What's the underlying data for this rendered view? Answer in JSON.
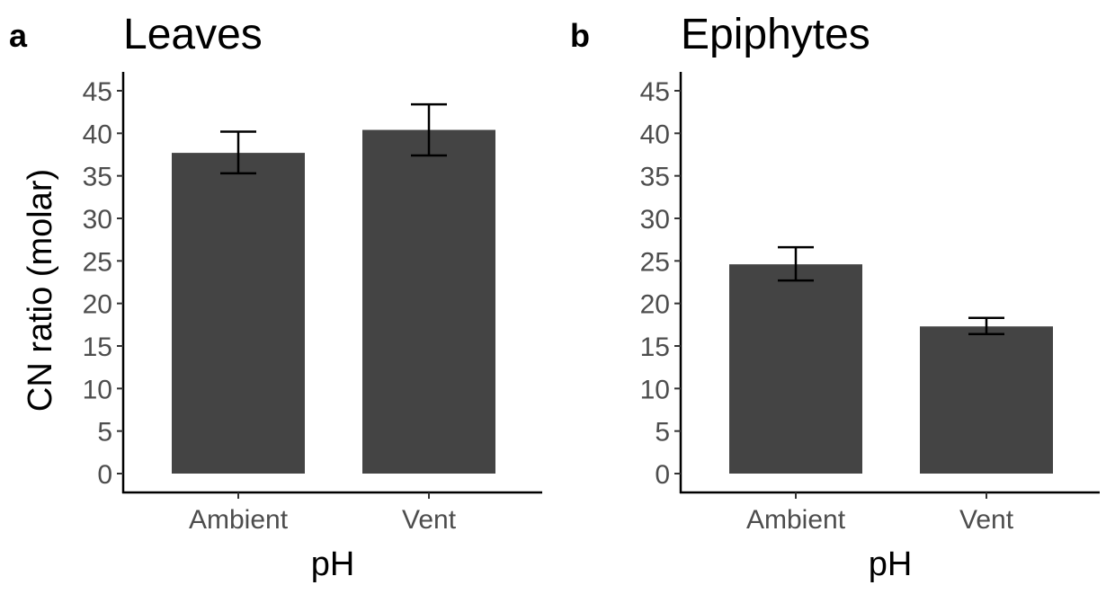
{
  "chart_data": [
    {
      "type": "bar",
      "panel": "a",
      "title": "Leaves",
      "xlabel": "pH",
      "ylabel": "CN ratio (molar)",
      "categories": [
        "Ambient",
        "Vent"
      ],
      "values": [
        37.7,
        40.4
      ],
      "error_low": [
        35.3,
        37.4
      ],
      "error_high": [
        40.2,
        43.4
      ],
      "ylim": [
        0,
        45
      ],
      "yticks": [
        "0",
        "5",
        "10",
        "15",
        "20",
        "25",
        "30",
        "35",
        "40",
        "45"
      ],
      "bar_color": "#444444",
      "grid": false
    },
    {
      "type": "bar",
      "panel": "b",
      "title": "Epiphytes",
      "xlabel": "pH",
      "ylabel": "",
      "categories": [
        "Ambient",
        "Vent"
      ],
      "values": [
        24.6,
        17.3
      ],
      "error_low": [
        22.7,
        16.4
      ],
      "error_high": [
        26.6,
        18.3
      ],
      "ylim": [
        0,
        45
      ],
      "yticks": [
        "0",
        "5",
        "10",
        "15",
        "20",
        "25",
        "30",
        "35",
        "40",
        "45"
      ],
      "bar_color": "#444444",
      "grid": false
    }
  ]
}
